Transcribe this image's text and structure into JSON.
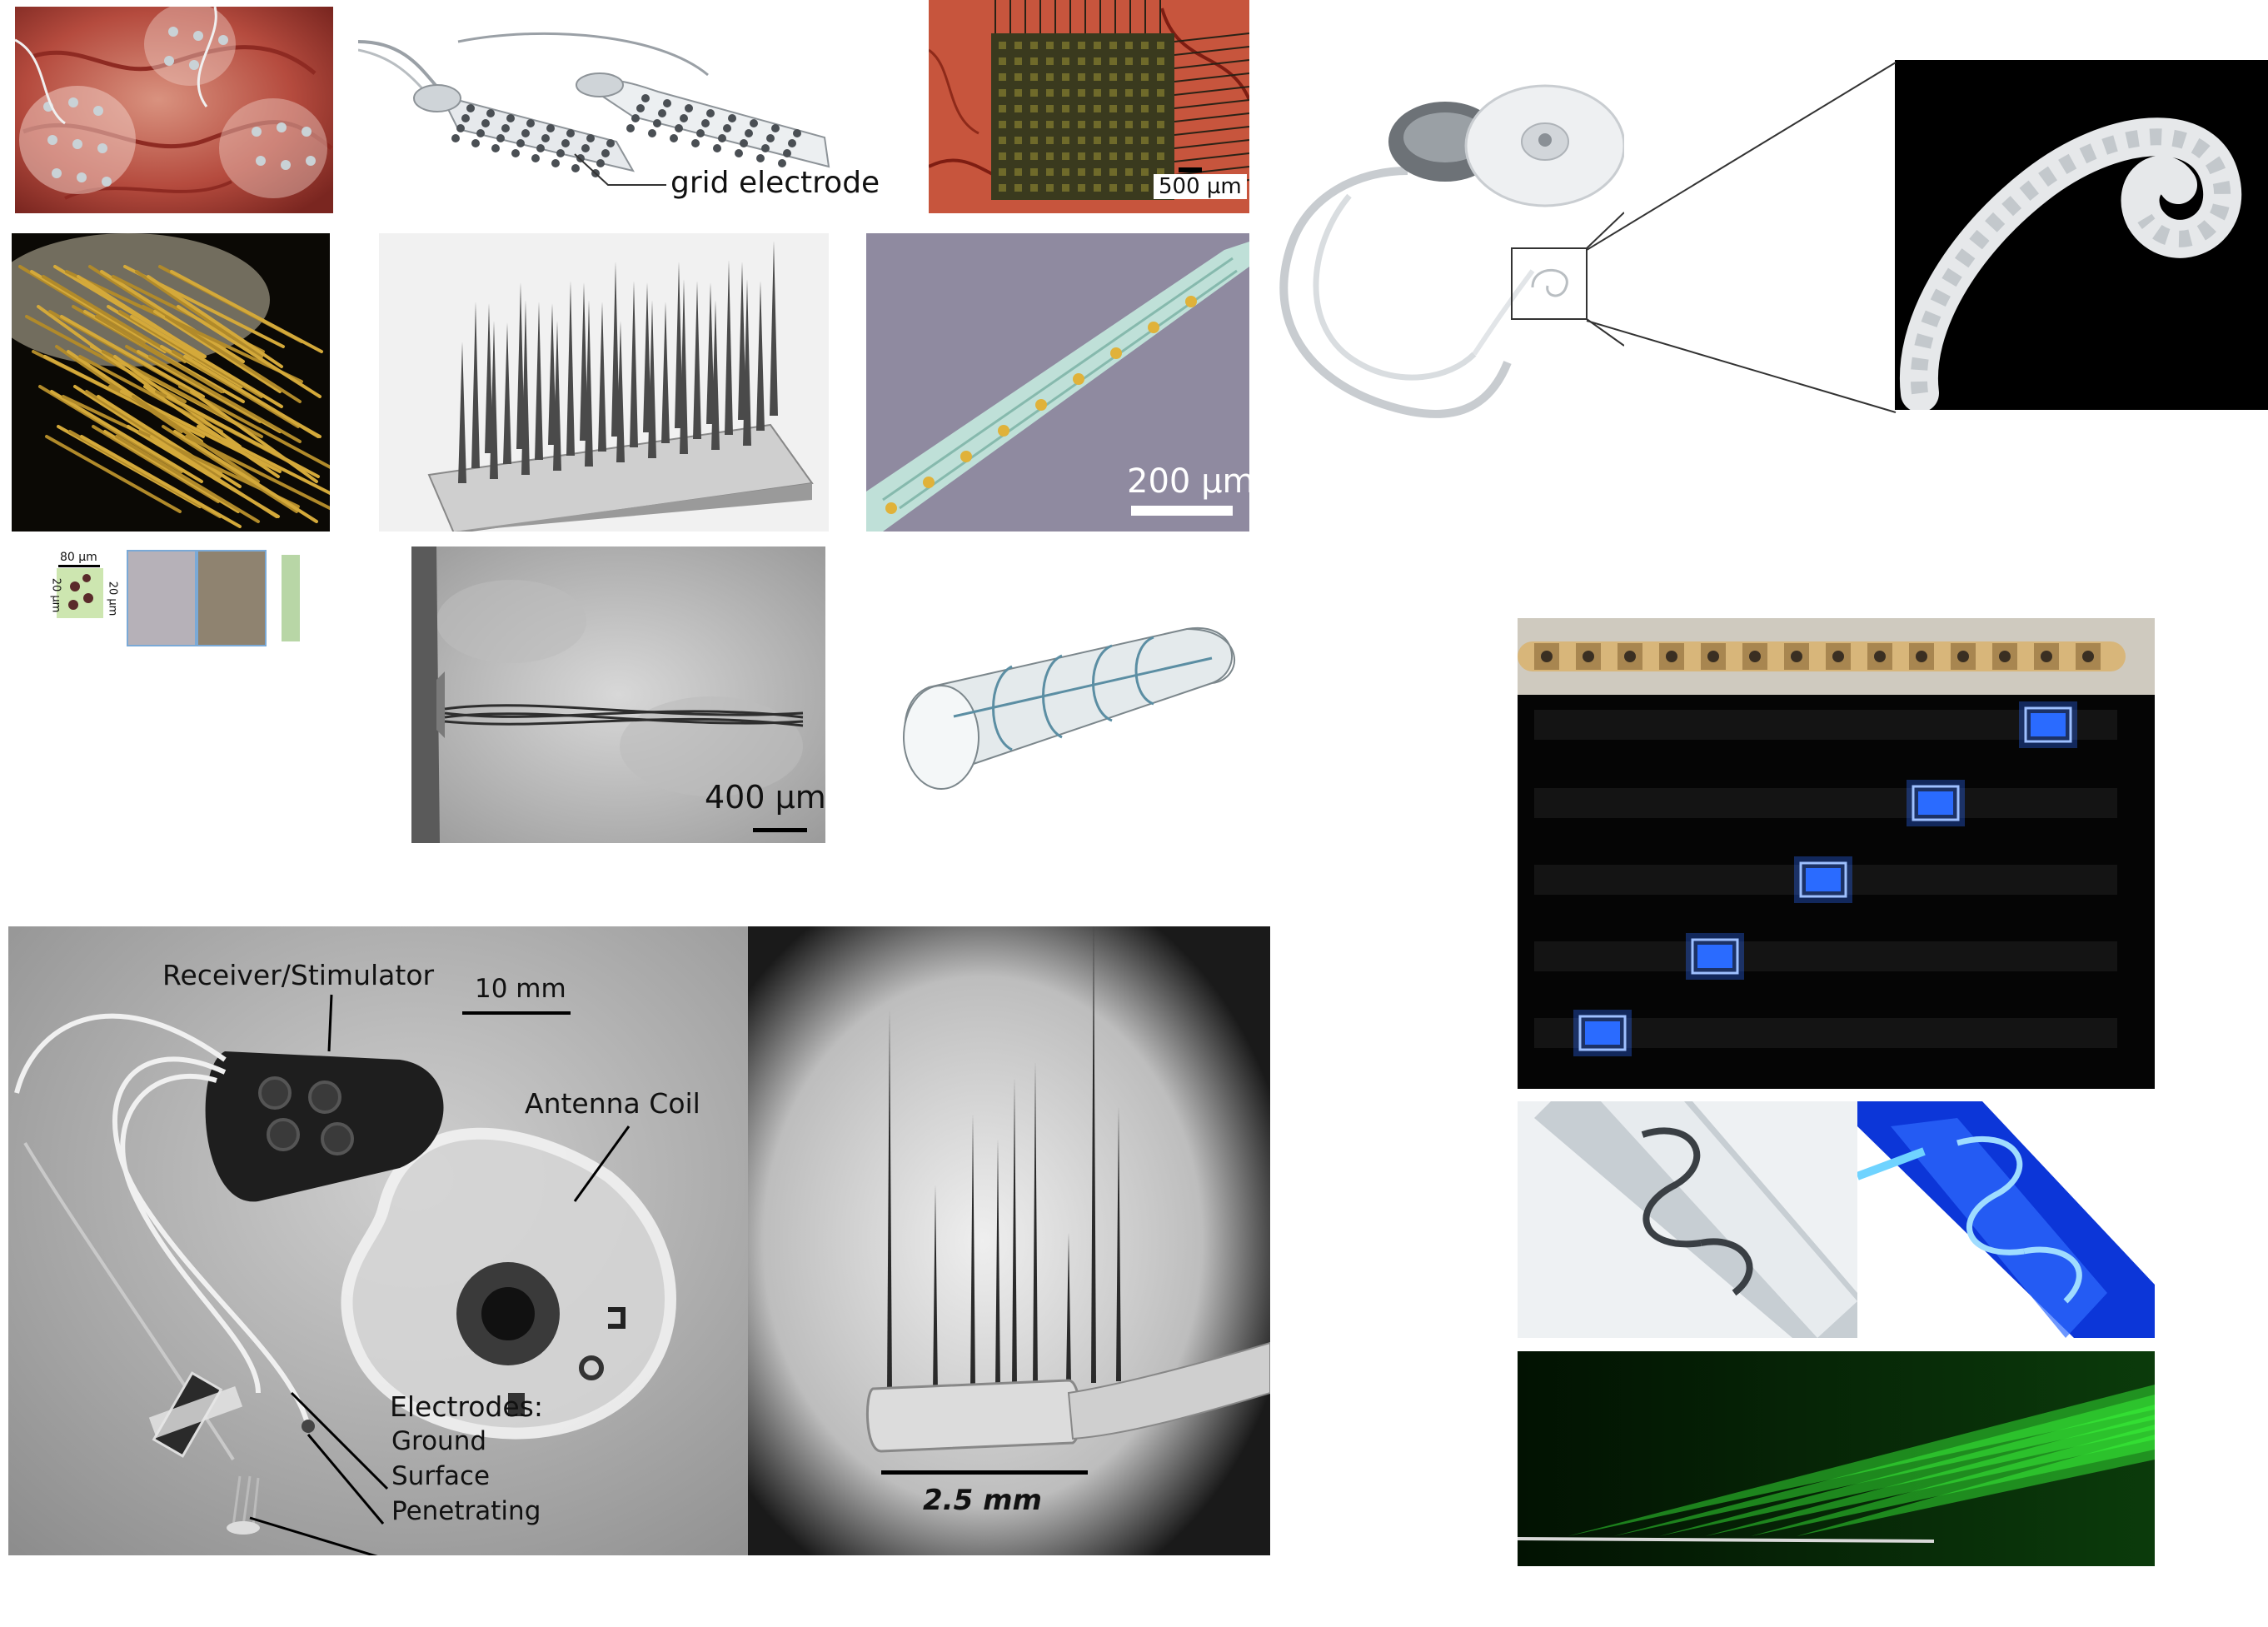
{
  "labels": {
    "grid_electrode": "grid electrode",
    "scale_500": "500 µm",
    "scale_200": "200 µm",
    "scale_400": "400 µm",
    "scale_80": "80 µm",
    "scale_20a": "20 µm",
    "scale_20b": "20 µm",
    "receiver": "Receiver/Stimulator",
    "scale_10mm": "10 mm",
    "antenna": "Antenna Coil",
    "electrodes": "Electrodes:",
    "ground": "Ground",
    "surface": "Surface",
    "penetrating": "Penetrating",
    "scale_25mm": "2.5 mm"
  },
  "colors": {
    "led_blue": "#2a6bff",
    "laser_green": "#3cff3c",
    "gold": "#d4a93a",
    "tissue_red": "#b8403a"
  }
}
